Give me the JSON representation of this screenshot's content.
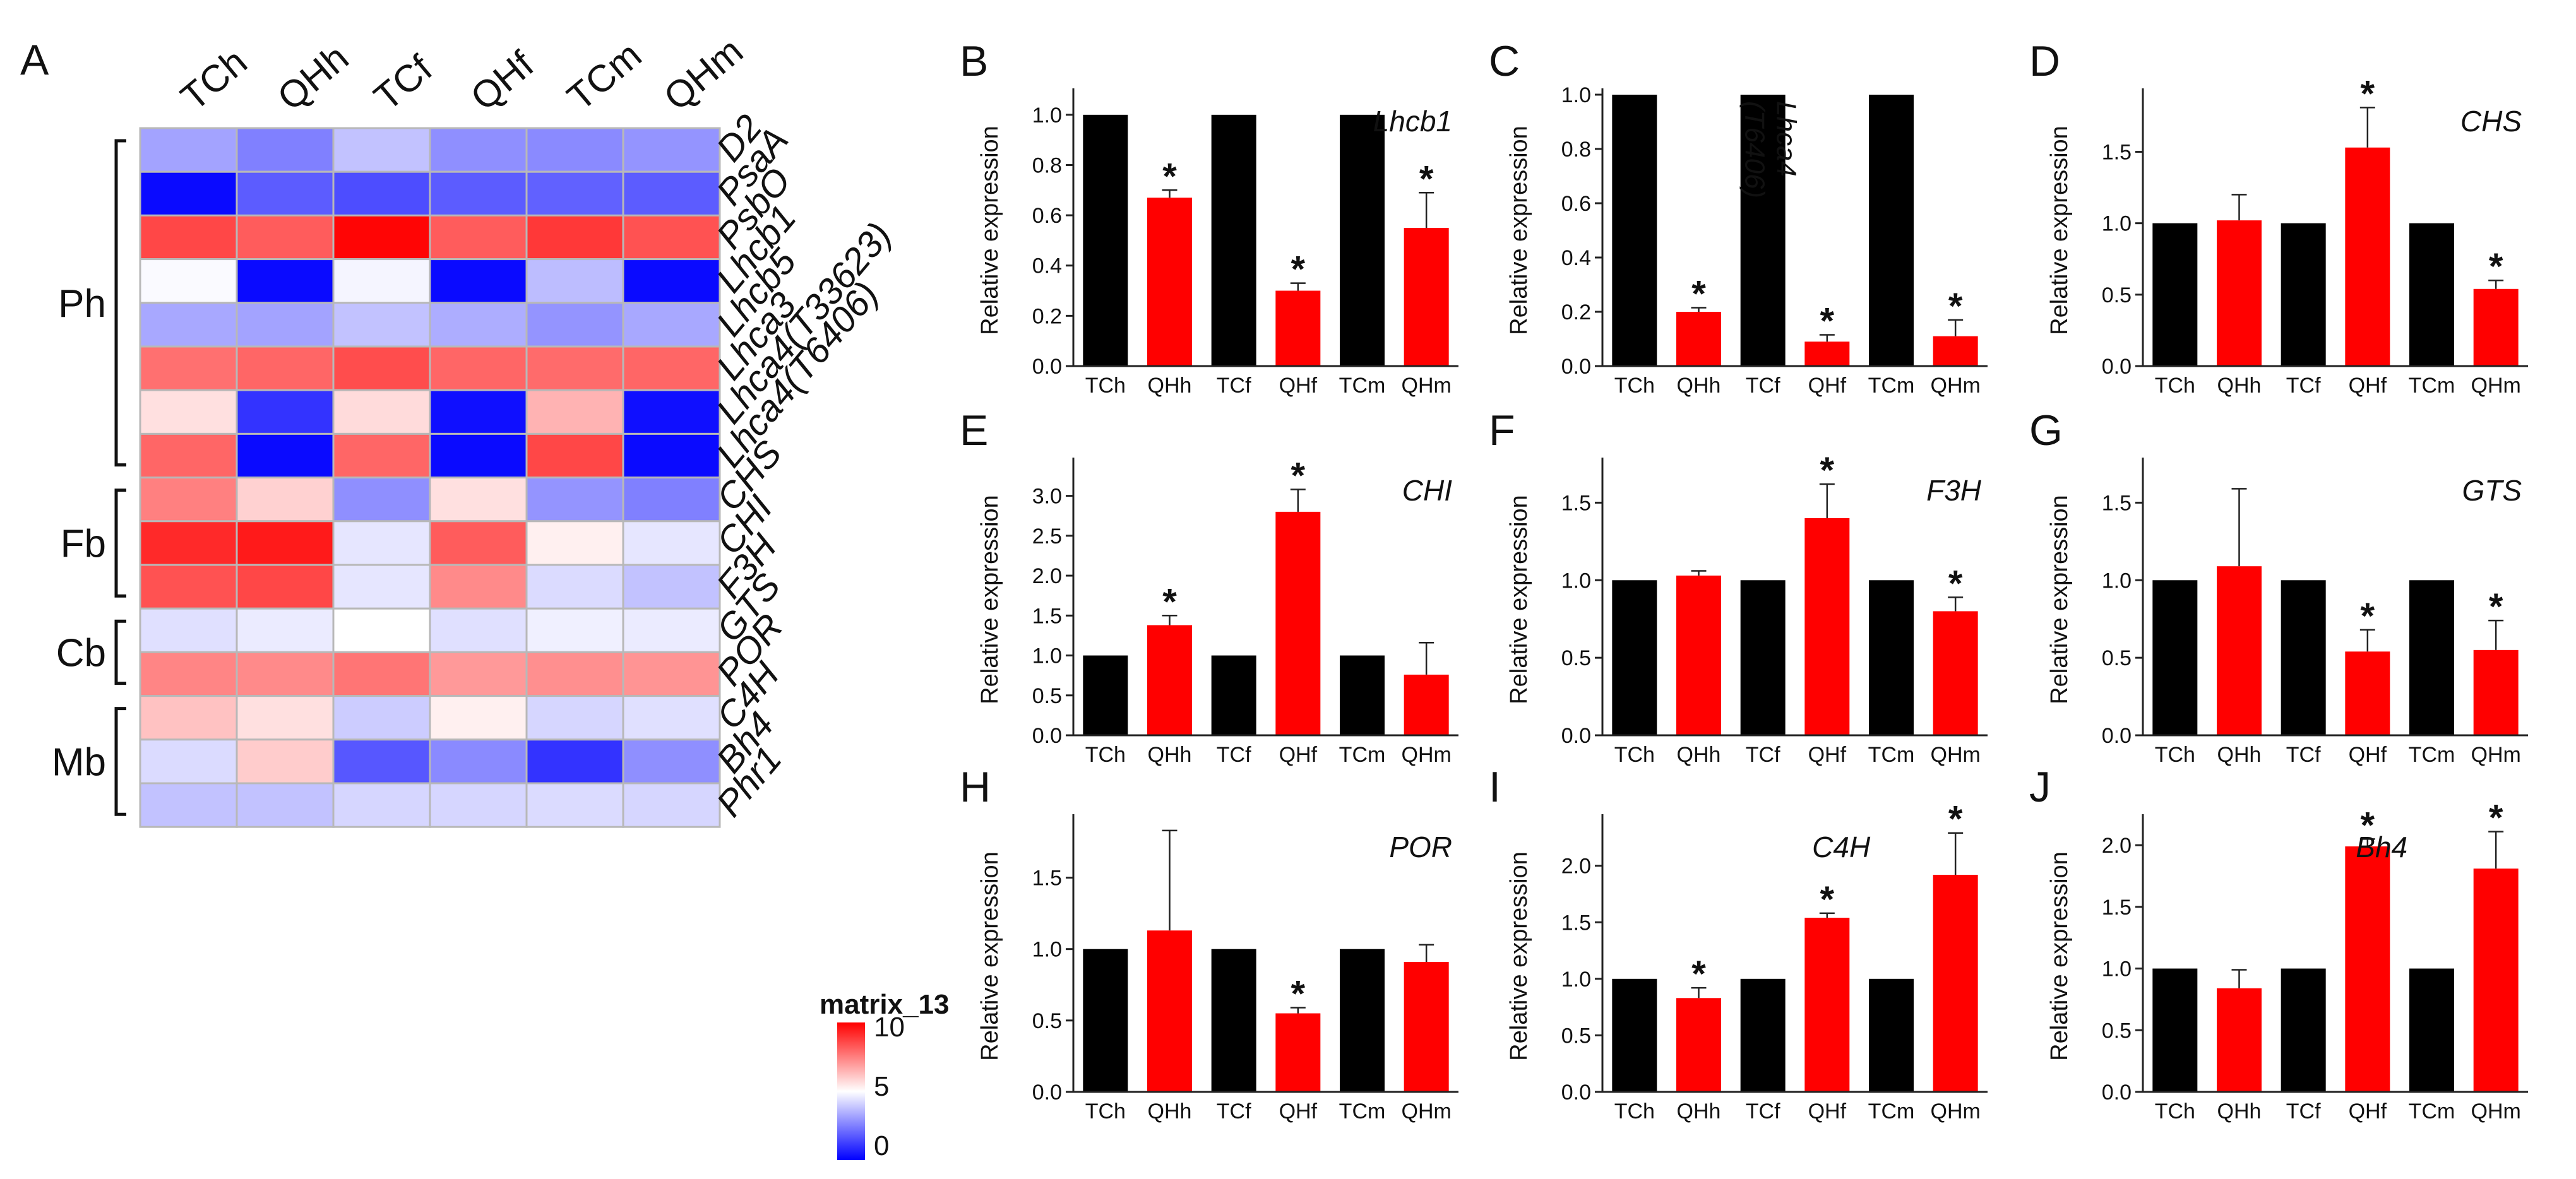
{
  "heatmap": {
    "panel_letter": "A",
    "columns": [
      "TCh",
      "QHh",
      "TCf",
      "QHf",
      "TCm",
      "QHm"
    ],
    "rows": [
      "D2",
      "PsaA",
      "PsbO",
      "Lhcb1",
      "Lhcb5",
      "Lhca3",
      "Lhca4(T33623)",
      "Lhca4(T6406)",
      "CHS",
      "CHI",
      "F3H",
      "GTS",
      "POR",
      "C4H",
      "Bh4",
      "Phr1"
    ],
    "values": [
      [
        3.2,
        2.5,
        3.8,
        2.8,
        2.7,
        2.9
      ],
      [
        0.2,
        1.8,
        1.5,
        1.8,
        1.9,
        1.8
      ],
      [
        8.6,
        8.2,
        9.9,
        8.2,
        8.9,
        8.4
      ],
      [
        4.9,
        0.2,
        4.8,
        0.2,
        3.7,
        0.2
      ],
      [
        3.3,
        3.2,
        3.8,
        3.4,
        2.9,
        3.3
      ],
      [
        7.8,
        8.0,
        8.5,
        8.0,
        7.9,
        8.0
      ],
      [
        5.6,
        1.0,
        5.7,
        0.3,
        6.5,
        0.3
      ],
      [
        8.0,
        0.2,
        8.0,
        0.2,
        8.6,
        0.2
      ],
      [
        7.5,
        5.9,
        2.8,
        5.6,
        2.9,
        2.5
      ],
      [
        9.2,
        9.5,
        4.5,
        8.2,
        5.3,
        4.5
      ],
      [
        8.4,
        8.6,
        4.5,
        7.3,
        4.3,
        3.8
      ],
      [
        4.4,
        4.6,
        5.0,
        4.4,
        4.7,
        4.6
      ],
      [
        7.4,
        7.3,
        7.7,
        7.0,
        7.2,
        7.1
      ],
      [
        6.2,
        5.6,
        4.0,
        5.3,
        4.2,
        4.4
      ],
      [
        4.3,
        6.0,
        1.7,
        2.7,
        1.0,
        2.8
      ],
      [
        3.8,
        3.8,
        4.2,
        4.2,
        4.3,
        4.2
      ]
    ],
    "groups": [
      {
        "label": "Ph",
        "from": 0,
        "to": 7
      },
      {
        "label": "Fb",
        "from": 8,
        "to": 10
      },
      {
        "label": "Cb",
        "from": 11,
        "to": 12
      },
      {
        "label": "Mb",
        "from": 13,
        "to": 15
      }
    ],
    "legend": {
      "title": "matrix_13",
      "ticks": [
        "10",
        "5",
        "0"
      ],
      "min": 0,
      "max": 10,
      "low_color": "#0000ff",
      "mid_color": "#ffffff",
      "high_color": "#ff0000"
    }
  },
  "chart_data": [
    {
      "panel": "B",
      "type": "bar",
      "gene": "Lhcb1",
      "ylabel": "Relative expression",
      "categories": [
        "TCh",
        "QHh",
        "TCf",
        "QHf",
        "TCm",
        "QHm"
      ],
      "values": [
        1.0,
        0.67,
        1.0,
        0.3,
        1.0,
        0.55
      ],
      "errors": [
        0,
        0.03,
        0,
        0.03,
        0,
        0.14
      ],
      "significant": [
        false,
        true,
        false,
        true,
        false,
        true
      ],
      "ylim": [
        0,
        1.08
      ],
      "yticks": [
        0.0,
        0.2,
        0.4,
        0.6,
        0.8,
        1.0
      ],
      "tick_labels": [
        "0.0",
        "0.2",
        "0.4",
        "0.6",
        "0.8",
        "1.0"
      ],
      "label_pos": "top-right"
    },
    {
      "panel": "C",
      "type": "bar",
      "gene": "Lhca4",
      "gene_line2": "(T6406)",
      "ylabel": "Relative expression",
      "categories": [
        "TCh",
        "QHh",
        "TCf",
        "QHf",
        "TCm",
        "QHm"
      ],
      "values": [
        1.0,
        0.2,
        1.0,
        0.09,
        1.0,
        0.11
      ],
      "errors": [
        0,
        0.015,
        0,
        0.025,
        0,
        0.06
      ],
      "significant": [
        false,
        true,
        false,
        true,
        false,
        true
      ],
      "ylim": [
        0,
        1.0
      ],
      "yticks": [
        0.0,
        0.2,
        0.4,
        0.6,
        0.8,
        1.0
      ],
      "tick_labels": [
        "0.0",
        "0.2",
        "0.4",
        "0.6",
        "0.8",
        "1.0"
      ],
      "label_pos": "vertical"
    },
    {
      "panel": "D",
      "type": "bar",
      "gene": "CHS",
      "ylabel": "Relative expression",
      "categories": [
        "TCh",
        "QHh",
        "TCf",
        "QHf",
        "TCm",
        "QHm"
      ],
      "values": [
        1.0,
        1.02,
        1.0,
        1.53,
        1.0,
        0.54
      ],
      "errors": [
        0,
        0.18,
        0,
        0.28,
        0,
        0.06
      ],
      "significant": [
        false,
        false,
        false,
        true,
        false,
        true
      ],
      "ylim": [
        0,
        1.9
      ],
      "yticks": [
        0.0,
        0.5,
        1.0,
        1.5
      ],
      "tick_labels": [
        "0.0",
        "0.5",
        "1.0",
        "1.5"
      ],
      "label_pos": "top-right"
    },
    {
      "panel": "E",
      "type": "bar",
      "gene": "CHI",
      "ylabel": "Relative expression",
      "categories": [
        "TCh",
        "QHh",
        "TCf",
        "QHf",
        "TCm",
        "QHm"
      ],
      "values": [
        1.0,
        1.38,
        1.0,
        2.8,
        1.0,
        0.76
      ],
      "errors": [
        0,
        0.12,
        0,
        0.28,
        0,
        0.4
      ],
      "significant": [
        false,
        true,
        false,
        true,
        false,
        false
      ],
      "ylim": [
        0,
        3.4
      ],
      "yticks": [
        0.0,
        0.5,
        1.0,
        1.5,
        2.0,
        2.5,
        3.0
      ],
      "tick_labels": [
        "0.0",
        "0.5",
        "1.0",
        "1.5",
        "2.0",
        "2.5",
        "3.0"
      ],
      "label_pos": "top-right"
    },
    {
      "panel": "F",
      "type": "bar",
      "gene": "F3H",
      "ylabel": "Relative expression",
      "categories": [
        "TCh",
        "QHh",
        "TCf",
        "QHf",
        "TCm",
        "QHm"
      ],
      "values": [
        1.0,
        1.03,
        1.0,
        1.4,
        1.0,
        0.8
      ],
      "errors": [
        0,
        0.03,
        0,
        0.22,
        0,
        0.09
      ],
      "significant": [
        false,
        false,
        false,
        true,
        false,
        true
      ],
      "ylim": [
        0,
        1.75
      ],
      "yticks": [
        0.0,
        0.5,
        1.0,
        1.5
      ],
      "tick_labels": [
        "0.0",
        "0.5",
        "1.0",
        "1.5"
      ],
      "label_pos": "top-right"
    },
    {
      "panel": "G",
      "type": "bar",
      "gene": "GTS",
      "ylabel": "Relative expression",
      "categories": [
        "TCh",
        "QHh",
        "TCf",
        "QHf",
        "TCm",
        "QHm"
      ],
      "values": [
        1.0,
        1.09,
        1.0,
        0.54,
        1.0,
        0.55
      ],
      "errors": [
        0,
        0.5,
        0,
        0.14,
        0,
        0.19
      ],
      "significant": [
        false,
        false,
        false,
        true,
        false,
        true
      ],
      "ylim": [
        0,
        1.75
      ],
      "yticks": [
        0.0,
        0.5,
        1.0,
        1.5
      ],
      "tick_labels": [
        "0.0",
        "0.5",
        "1.0",
        "1.5"
      ],
      "label_pos": "top-right"
    },
    {
      "panel": "H",
      "type": "bar",
      "gene": "POR",
      "ylabel": "Relative expression",
      "categories": [
        "TCh",
        "QHh",
        "TCf",
        "QHf",
        "TCm",
        "QHm"
      ],
      "values": [
        1.0,
        1.13,
        1.0,
        0.55,
        1.0,
        0.91
      ],
      "errors": [
        0,
        0.7,
        0,
        0.04,
        0,
        0.12
      ],
      "significant": [
        false,
        false,
        false,
        true,
        false,
        false
      ],
      "ylim": [
        0,
        1.9
      ],
      "yticks": [
        0.0,
        0.5,
        1.0,
        1.5
      ],
      "tick_labels": [
        "0.0",
        "0.5",
        "1.0",
        "1.5"
      ],
      "label_pos": "top-right"
    },
    {
      "panel": "I",
      "type": "bar",
      "gene": "C4H",
      "ylabel": "Relative expression",
      "categories": [
        "TCh",
        "QHh",
        "TCf",
        "QHf",
        "TCm",
        "QHm"
      ],
      "values": [
        1.0,
        0.83,
        1.0,
        1.54,
        1.0,
        1.92
      ],
      "errors": [
        0,
        0.09,
        0,
        0.04,
        0,
        0.37
      ],
      "significant": [
        false,
        true,
        false,
        true,
        false,
        true
      ],
      "ylim": [
        0,
        2.4
      ],
      "yticks": [
        0.0,
        0.5,
        1.0,
        1.5,
        2.0
      ],
      "tick_labels": [
        "0.0",
        "0.5",
        "1.0",
        "1.5",
        "2.0"
      ],
      "label_pos": "top-center"
    },
    {
      "panel": "J",
      "type": "bar",
      "gene": "Bh4",
      "ylabel": "Relative expression",
      "categories": [
        "TCh",
        "QHh",
        "TCf",
        "QHf",
        "TCm",
        "QHm"
      ],
      "values": [
        1.0,
        0.84,
        1.0,
        1.99,
        1.0,
        1.81
      ],
      "errors": [
        0,
        0.15,
        0,
        0.06,
        0,
        0.3
      ],
      "significant": [
        false,
        false,
        false,
        true,
        false,
        true
      ],
      "ylim": [
        0,
        2.2
      ],
      "yticks": [
        0.0,
        0.5,
        1.0,
        1.5,
        2.0
      ],
      "tick_labels": [
        "0.0",
        "0.5",
        "1.0",
        "1.5",
        "2.0"
      ],
      "label_pos": "top-center"
    }
  ],
  "colors": {
    "treated_bar": "#ff0000",
    "control_bar": "#000000",
    "axis": "#222222",
    "grid_line": "#aaaaaa"
  },
  "significance_mark": "*"
}
